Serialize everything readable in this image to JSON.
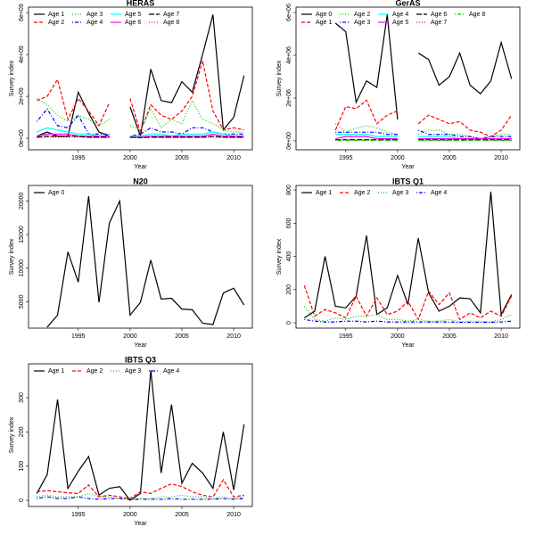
{
  "chart_data": [
    {
      "type": "line",
      "title": "HERAS",
      "xlabel": "Year",
      "ylabel": "Survey index",
      "x": [
        1991,
        1992,
        1993,
        1994,
        1995,
        1996,
        1997,
        1998,
        1999,
        2000,
        2001,
        2002,
        2003,
        2004,
        2005,
        2006,
        2007,
        2008,
        2009,
        2010,
        2011
      ],
      "xlim": [
        1990.2,
        2011.8
      ],
      "xticks": [
        1995,
        2000,
        2005,
        2010
      ],
      "ylim": [
        -550000000.0,
        6260000000.0
      ],
      "yticks": [
        {
          "value": 0,
          "label": "0e+00"
        },
        {
          "value": 2000000000.0,
          "label": "2e+09"
        },
        {
          "value": 4000000000.0,
          "label": "4e+09"
        },
        {
          "value": 6000000000.0,
          "label": "6e+09"
        }
      ],
      "series": [
        {
          "name": "Age 1",
          "color": "#000000",
          "dash": "solid",
          "values": [
            100000000.0,
            300000000.0,
            100000000.0,
            100000000.0,
            2200000000.0,
            1200000000.0,
            300000000.0,
            100000000.0,
            null,
            1500000000.0,
            100000000.0,
            3300000000.0,
            1800000000.0,
            1700000000.0,
            2700000000.0,
            2200000000.0,
            4000000000.0,
            5900000000.0,
            400000000.0,
            1000000000.0,
            3000000000.0
          ]
        },
        {
          "name": "Age 2",
          "color": "#ff0000",
          "dash": "dashed",
          "values": [
            1800000000.0,
            2000000000.0,
            2800000000.0,
            900000000.0,
            1900000000.0,
            1300000000.0,
            600000000.0,
            1700000000.0,
            null,
            1900000000.0,
            300000000.0,
            1600000000.0,
            1100000000.0,
            900000000.0,
            1300000000.0,
            2000000000.0,
            3700000000.0,
            1300000000.0,
            400000000.0,
            500000000.0,
            400000000.0
          ]
        },
        {
          "name": "Age 3",
          "color": "#00cd00",
          "dash": "dotted",
          "values": [
            1900000000.0,
            1600000000.0,
            1100000000.0,
            800000000.0,
            1100000000.0,
            900000000.0,
            600000000.0,
            900000000.0,
            null,
            600000000.0,
            400000000.0,
            1400000000.0,
            500000000.0,
            900000000.0,
            700000000.0,
            1800000000.0,
            900000000.0,
            700000000.0,
            400000000.0,
            300000000.0,
            300000000.0
          ]
        },
        {
          "name": "Age 4",
          "color": "#0000ff",
          "dash": "dotdash",
          "values": [
            800000000.0,
            1400000000.0,
            600000000.0,
            500000000.0,
            1100000000.0,
            200000000.0,
            200000000.0,
            200000000.0,
            null,
            100000000.0,
            200000000.0,
            500000000.0,
            300000000.0,
            300000000.0,
            200000000.0,
            500000000.0,
            500000000.0,
            300000000.0,
            200000000.0,
            200000000.0,
            200000000.0
          ]
        },
        {
          "name": "Age 5",
          "color": "#00ffff",
          "dash": "solid",
          "values": [
            300000000.0,
            500000000.0,
            400000000.0,
            300000000.0,
            200000000.0,
            200000000.0,
            100000000.0,
            100000000.0,
            null,
            100000000.0,
            100000000.0,
            200000000.0,
            200000000.0,
            100000000.0,
            200000000.0,
            200000000.0,
            200000000.0,
            300000000.0,
            200000000.0,
            100000000.0,
            100000000.0
          ]
        },
        {
          "name": "Age 6",
          "color": "#ff00ff",
          "dash": "solid",
          "values": [
            100000000.0,
            200000000.0,
            200000000.0,
            200000000.0,
            100000000.0,
            100000000.0,
            100000000.0,
            100000000.0,
            null,
            50000000.0,
            50000000.0,
            100000000.0,
            100000000.0,
            100000000.0,
            100000000.0,
            100000000.0,
            100000000.0,
            200000000.0,
            100000000.0,
            100000000.0,
            100000000.0
          ]
        },
        {
          "name": "Age 7",
          "color": "#000000",
          "dash": "longdash",
          "values": [
            50000000.0,
            100000000.0,
            100000000.0,
            100000000.0,
            100000000.0,
            50000000.0,
            50000000.0,
            50000000.0,
            null,
            50000000.0,
            30000000.0,
            50000000.0,
            50000000.0,
            50000000.0,
            50000000.0,
            50000000.0,
            50000000.0,
            100000000.0,
            50000000.0,
            50000000.0,
            50000000.0
          ]
        },
        {
          "name": "Age 8",
          "color": "#ff0000",
          "dash": "dotted",
          "values": [
            30000000.0,
            50000000.0,
            50000000.0,
            50000000.0,
            50000000.0,
            30000000.0,
            30000000.0,
            30000000.0,
            null,
            30000000.0,
            20000000.0,
            30000000.0,
            30000000.0,
            30000000.0,
            30000000.0,
            30000000.0,
            30000000.0,
            50000000.0,
            30000000.0,
            30000000.0,
            30000000.0
          ]
        }
      ]
    },
    {
      "type": "line",
      "title": "GerAS",
      "xlabel": "Year",
      "ylabel": "Survey index",
      "x": [
        1994,
        1995,
        1996,
        1997,
        1998,
        1999,
        2000,
        2001,
        2002,
        2003,
        2004,
        2005,
        2006,
        2007,
        2008,
        2009,
        2010,
        2011
      ],
      "xlim": [
        1990.2,
        2011.8
      ],
      "xticks": [
        1995,
        2000,
        2005,
        2010
      ],
      "ylim": [
        -420000.0,
        6250000.0
      ],
      "yticks": [
        {
          "value": 0,
          "label": "0e+00"
        },
        {
          "value": 2000000.0,
          "label": "2e+06"
        },
        {
          "value": 4000000.0,
          "label": "4e+06"
        },
        {
          "value": 6000000.0,
          "label": "6e+06"
        }
      ],
      "series": [
        {
          "name": "Age 0",
          "color": "#000000",
          "dash": "solid",
          "values": [
            5500000.0,
            5100000.0,
            1800000.0,
            2800000.0,
            2500000.0,
            5900000.0,
            1000000.0,
            null,
            4100000.0,
            3800000.0,
            2600000.0,
            3000000.0,
            4100000.0,
            2600000.0,
            2200000.0,
            2800000.0,
            4600000.0,
            2900000.0
          ]
        },
        {
          "name": "Age 1",
          "color": "#ff0000",
          "dash": "dashed",
          "values": [
            500000.0,
            1600000.0,
            1500000.0,
            1900000.0,
            800000.0,
            1200000.0,
            1400000.0,
            null,
            800000.0,
            1200000.0,
            1000000.0,
            800000.0,
            900000.0,
            500000.0,
            400000.0,
            200000.0,
            500000.0,
            1200000.0
          ]
        },
        {
          "name": "Age 2",
          "color": "#00cd00",
          "dash": "dotted",
          "values": [
            800000.0,
            400000.0,
            600000.0,
            700000.0,
            600000.0,
            400000.0,
            300000.0,
            null,
            300000.0,
            500000.0,
            500000.0,
            300000.0,
            300000.0,
            200000.0,
            100000.0,
            200000.0,
            300000.0,
            300000.0
          ]
        },
        {
          "name": "Age 3",
          "color": "#0000ff",
          "dash": "dotdash",
          "values": [
            400000.0,
            400000.0,
            400000.0,
            400000.0,
            400000.0,
            300000.0,
            300000.0,
            null,
            500000.0,
            300000.0,
            300000.0,
            300000.0,
            200000.0,
            200000.0,
            100000.0,
            200000.0,
            200000.0,
            200000.0
          ]
        },
        {
          "name": "Age 4",
          "color": "#00ffff",
          "dash": "solid",
          "values": [
            300000.0,
            300000.0,
            300000.0,
            300000.0,
            200000.0,
            200000.0,
            200000.0,
            null,
            200000.0,
            200000.0,
            200000.0,
            200000.0,
            100000.0,
            100000.0,
            100000.0,
            100000.0,
            100000.0,
            100000.0
          ]
        },
        {
          "name": "Age 5",
          "color": "#ff00ff",
          "dash": "solid",
          "values": [
            100000.0,
            200000.0,
            200000.0,
            200000.0,
            100000.0,
            100000.0,
            100000.0,
            null,
            100000.0,
            100000.0,
            100000.0,
            100000.0,
            100000.0,
            100000.0,
            100000.0,
            100000.0,
            100000.0,
            100000.0
          ]
        },
        {
          "name": "Age 6",
          "color": "#000000",
          "dash": "longdash",
          "values": [
            50000.0,
            50000.0,
            50000.0,
            50000.0,
            50000.0,
            50000.0,
            50000.0,
            null,
            50000.0,
            50000.0,
            50000.0,
            50000.0,
            50000.0,
            50000.0,
            50000.0,
            50000.0,
            50000.0,
            50000.0
          ]
        },
        {
          "name": "Age 7",
          "color": "#ff0000",
          "dash": "dotted",
          "values": [
            30000.0,
            30000.0,
            30000.0,
            30000.0,
            30000.0,
            30000.0,
            30000.0,
            null,
            30000.0,
            30000.0,
            30000.0,
            30000.0,
            30000.0,
            30000.0,
            30000.0,
            30000.0,
            30000.0,
            30000.0
          ]
        },
        {
          "name": "Age 8",
          "color": "#00cd00",
          "dash": "dotdash",
          "values": [
            20000.0,
            20000.0,
            20000.0,
            20000.0,
            20000.0,
            20000.0,
            20000.0,
            null,
            20000.0,
            20000.0,
            20000.0,
            20000.0,
            20000.0,
            20000.0,
            20000.0,
            20000.0,
            20000.0,
            20000.0
          ]
        }
      ]
    },
    {
      "type": "line",
      "title": "N20",
      "xlabel": "Year",
      "ylabel": "Survey index",
      "x": [
        1992,
        1993,
        1994,
        1995,
        1996,
        1997,
        1998,
        1999,
        2000,
        2001,
        2002,
        2003,
        2004,
        2005,
        2006,
        2007,
        2008,
        2009,
        2010,
        2011
      ],
      "xlim": [
        1990.2,
        2011.8
      ],
      "xticks": [
        1995,
        2000,
        2005,
        2010
      ],
      "ylim": [
        1060,
        22300
      ],
      "yticks": [
        5000,
        10000,
        15000,
        20000
      ],
      "series": [
        {
          "name": "Age 0",
          "color": "#000000",
          "dash": "solid",
          "values": [
            1200,
            3000,
            12400,
            7900,
            20700,
            4900,
            16700,
            20000,
            3000,
            4900,
            11200,
            5400,
            5500,
            3900,
            3800,
            1800,
            1600,
            6300,
            7000,
            4500
          ]
        }
      ]
    },
    {
      "type": "line",
      "title": "IBTS Q1",
      "xlabel": "Year",
      "ylabel": "Survey index",
      "x": [
        1991,
        1992,
        1993,
        1994,
        1995,
        1996,
        1997,
        1998,
        1999,
        2000,
        2001,
        2002,
        2003,
        2004,
        2005,
        2006,
        2007,
        2008,
        2009,
        2010,
        2011
      ],
      "xlim": [
        1990.2,
        2011.8
      ],
      "xticks": [
        1995,
        2000,
        2005,
        2010
      ],
      "ylim": [
        -32,
        827
      ],
      "yticks": [
        0,
        200,
        400,
        600,
        800
      ],
      "series": [
        {
          "name": "Age 1",
          "color": "#000000",
          "dash": "solid",
          "values": [
            30,
            70,
            400,
            100,
            90,
            160,
            525,
            50,
            90,
            285,
            110,
            510,
            180,
            70,
            100,
            150,
            145,
            60,
            790,
            50,
            170
          ]
        },
        {
          "name": "Age 2",
          "color": "#ff0000",
          "dash": "dashed",
          "values": [
            225,
            40,
            80,
            60,
            30,
            160,
            40,
            150,
            50,
            70,
            130,
            20,
            190,
            110,
            180,
            20,
            60,
            30,
            70,
            40,
            160
          ]
        },
        {
          "name": "Age 3",
          "color": "#00cd00",
          "dash": "dotted",
          "values": [
            100,
            20,
            10,
            30,
            20,
            40,
            40,
            50,
            20,
            20,
            10,
            20,
            10,
            10,
            20,
            5,
            10,
            10,
            5,
            20,
            50
          ]
        },
        {
          "name": "Age 4",
          "color": "#0000ff",
          "dash": "dotdash",
          "values": [
            20,
            10,
            5,
            5,
            10,
            10,
            5,
            10,
            5,
            5,
            5,
            5,
            5,
            5,
            5,
            3,
            3,
            3,
            3,
            5,
            10
          ]
        }
      ]
    },
    {
      "type": "line",
      "title": "IBTS Q3",
      "xlabel": "Year",
      "ylabel": "Survey index",
      "x": [
        1991,
        1992,
        1993,
        1994,
        1995,
        1996,
        1997,
        1998,
        1999,
        2000,
        2001,
        2002,
        2003,
        2004,
        2005,
        2006,
        2007,
        2008,
        2009,
        2010,
        2011
      ],
      "xlim": [
        1990.2,
        2011.8
      ],
      "xticks": [
        1995,
        2000,
        2005,
        2010
      ],
      "ylim": [
        -18,
        399
      ],
      "yticks": [
        0,
        100,
        200,
        300
      ],
      "series": [
        {
          "name": "Age 1",
          "color": "#000000",
          "dash": "solid",
          "values": [
            20,
            75,
            295,
            35,
            85,
            128,
            15,
            35,
            40,
            0,
            20,
            380,
            80,
            280,
            50,
            108,
            80,
            35,
            200,
            30,
            222
          ]
        },
        {
          "name": "Age 2",
          "color": "#ff0000",
          "dash": "dashed",
          "values": [
            25,
            28,
            25,
            22,
            20,
            45,
            10,
            15,
            10,
            5,
            25,
            20,
            35,
            48,
            40,
            25,
            15,
            10,
            60,
            10,
            15
          ]
        },
        {
          "name": "Age 3",
          "color": "#00cd00",
          "dash": "dotted",
          "values": [
            10,
            15,
            10,
            10,
            10,
            20,
            10,
            10,
            5,
            5,
            5,
            5,
            10,
            10,
            15,
            10,
            10,
            5,
            10,
            5,
            10
          ]
        },
        {
          "name": "Age 4",
          "color": "#0000ff",
          "dash": "dotdash",
          "values": [
            5,
            10,
            5,
            5,
            10,
            5,
            3,
            5,
            5,
            2,
            3,
            3,
            3,
            5,
            3,
            3,
            3,
            3,
            5,
            3,
            5
          ]
        }
      ]
    }
  ]
}
